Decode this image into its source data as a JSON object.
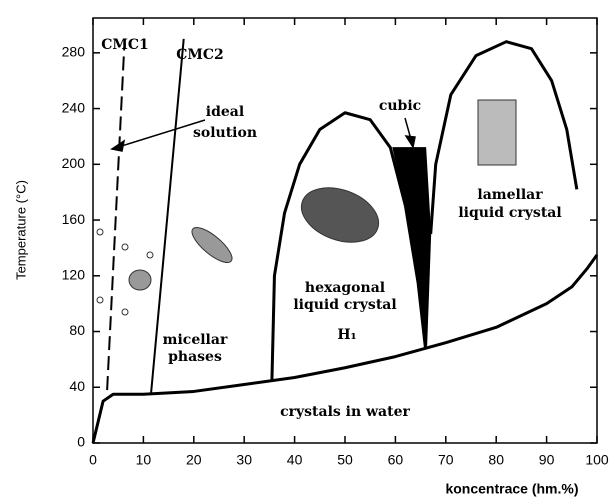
{
  "chart_data": {
    "type": "line",
    "x_label": "koncentrace (hm.%)",
    "y_label": "Temperature (°C)",
    "xlim": [
      0,
      100
    ],
    "ylim": [
      0,
      305
    ],
    "xticks": [
      0,
      10,
      20,
      30,
      40,
      50,
      60,
      70,
      80,
      90,
      100
    ],
    "yticks": [
      0,
      40,
      80,
      120,
      160,
      200,
      240,
      280
    ],
    "series": [
      {
        "name": "CMC1",
        "color": "#000000",
        "dashed": true,
        "x": [
          2.8,
          6.2
        ],
        "values": [
          38,
          284
        ]
      },
      {
        "name": "CMC2",
        "color": "#000000",
        "x": [
          11.5,
          18
        ],
        "values": [
          35,
          290
        ]
      },
      {
        "color": "#000000",
        "x": [
          0,
          1,
          2,
          4,
          10,
          20,
          30,
          40,
          50,
          60,
          70,
          80,
          90,
          95,
          98,
          100
        ],
        "values": [
          0,
          15,
          30,
          35,
          35,
          37,
          42,
          47,
          54,
          62,
          72,
          83,
          100,
          112,
          125,
          135
        ]
      },
      {
        "color": "#000000",
        "x": [
          35.5,
          36,
          38,
          41,
          45,
          50,
          55,
          59,
          62,
          64.5,
          66
        ],
        "values": [
          45,
          120,
          165,
          200,
          225,
          237,
          232,
          212,
          170,
          115,
          67
        ]
      },
      {
        "color": "#000000",
        "x": [
          67,
          68,
          71,
          76,
          82,
          87,
          91,
          94,
          96
        ],
        "values": [
          150,
          200,
          250,
          278,
          288,
          283,
          260,
          225,
          182
        ]
      },
      {
        "color": "#000000",
        "fill": true,
        "x": [
          59.5,
          66,
          67,
          66.2,
          64.5,
          62
        ],
        "values": [
          212,
          212,
          150,
          70,
          115,
          170
        ]
      }
    ],
    "annotations": [
      "CMC1",
      "CMC2",
      "ideal",
      "solution",
      "cubic",
      "lamellar",
      "liquid crystal",
      "hexagonal",
      "liquid crystal",
      "H₁",
      "micellar",
      "phases",
      "crystals in water"
    ]
  }
}
